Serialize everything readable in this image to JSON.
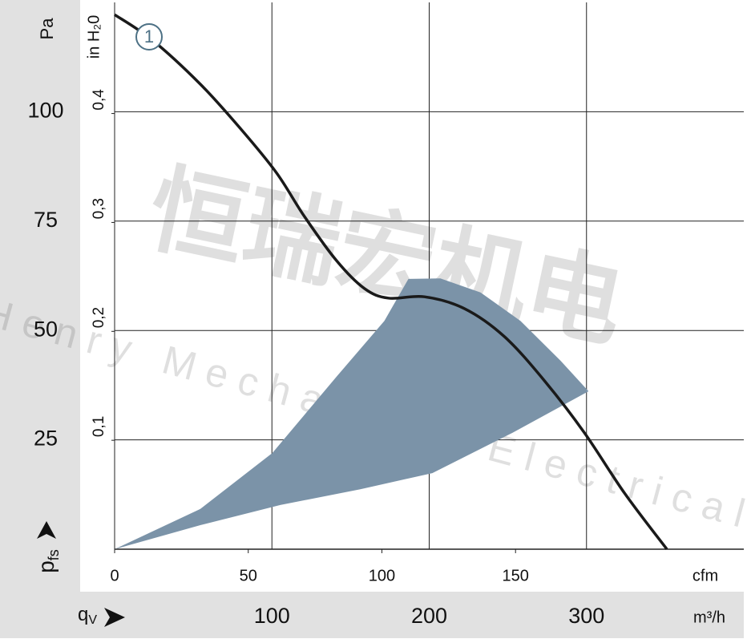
{
  "chart_data": {
    "type": "line",
    "y_label": "Pa",
    "y2_label": "in H₂0",
    "x_label": "m³/h",
    "x2_label": "cfm",
    "y_symbol": "p",
    "y_symbol_sub": "fs",
    "x_symbol": "q",
    "x_symbol_sub": "V",
    "xlim": [
      0,
      400
    ],
    "xticks": [
      100,
      200,
      300
    ],
    "x2lim": [
      0,
      235.4
    ],
    "x2ticks": [
      0,
      50,
      100,
      150
    ],
    "ylim": [
      0,
      125
    ],
    "yticks": [
      25,
      50,
      75,
      100
    ],
    "y2lim": [
      0,
      0.502
    ],
    "y2ticks": [
      {
        "value": 0.1,
        "label": "0,1"
      },
      {
        "value": 0.2,
        "label": "0,2"
      },
      {
        "value": 0.3,
        "label": "0,3"
      },
      {
        "value": 0.4,
        "label": "0,4"
      }
    ],
    "grid": true,
    "series": [
      {
        "name": "1",
        "color": "#1a1a1a",
        "x": [
          0,
          23.9,
          54.5,
          79.9,
          102.8,
          120.6,
          141,
          158.8,
          174,
          197,
          222.4,
          247.8,
          273.3,
          298.7,
          324.2,
          351.1
        ],
        "values": [
          122.2,
          116.4,
          106.3,
          96.2,
          86.1,
          76.1,
          66,
          59.6,
          57.4,
          57.7,
          55,
          48.6,
          38.5,
          26.6,
          12.8,
          0
        ]
      }
    ],
    "region": {
      "color": "#7b93a8",
      "x": [
        0,
        54.5,
        105.3,
        156.2,
        202,
        252.9,
        301.3,
        283.5,
        258,
        232.6,
        207.1,
        186.8,
        171.5,
        141,
        100.3,
        54.5
      ],
      "y": [
        0,
        5.5,
        10.1,
        13.7,
        17.4,
        26.6,
        36.1,
        43.1,
        52.2,
        58.7,
        61.9,
        61.8,
        52.2,
        39.4,
        22,
        9.2
      ]
    },
    "watermark": [
      "恒瑞宏机电",
      "Henry Mechanical Electrical"
    ]
  }
}
